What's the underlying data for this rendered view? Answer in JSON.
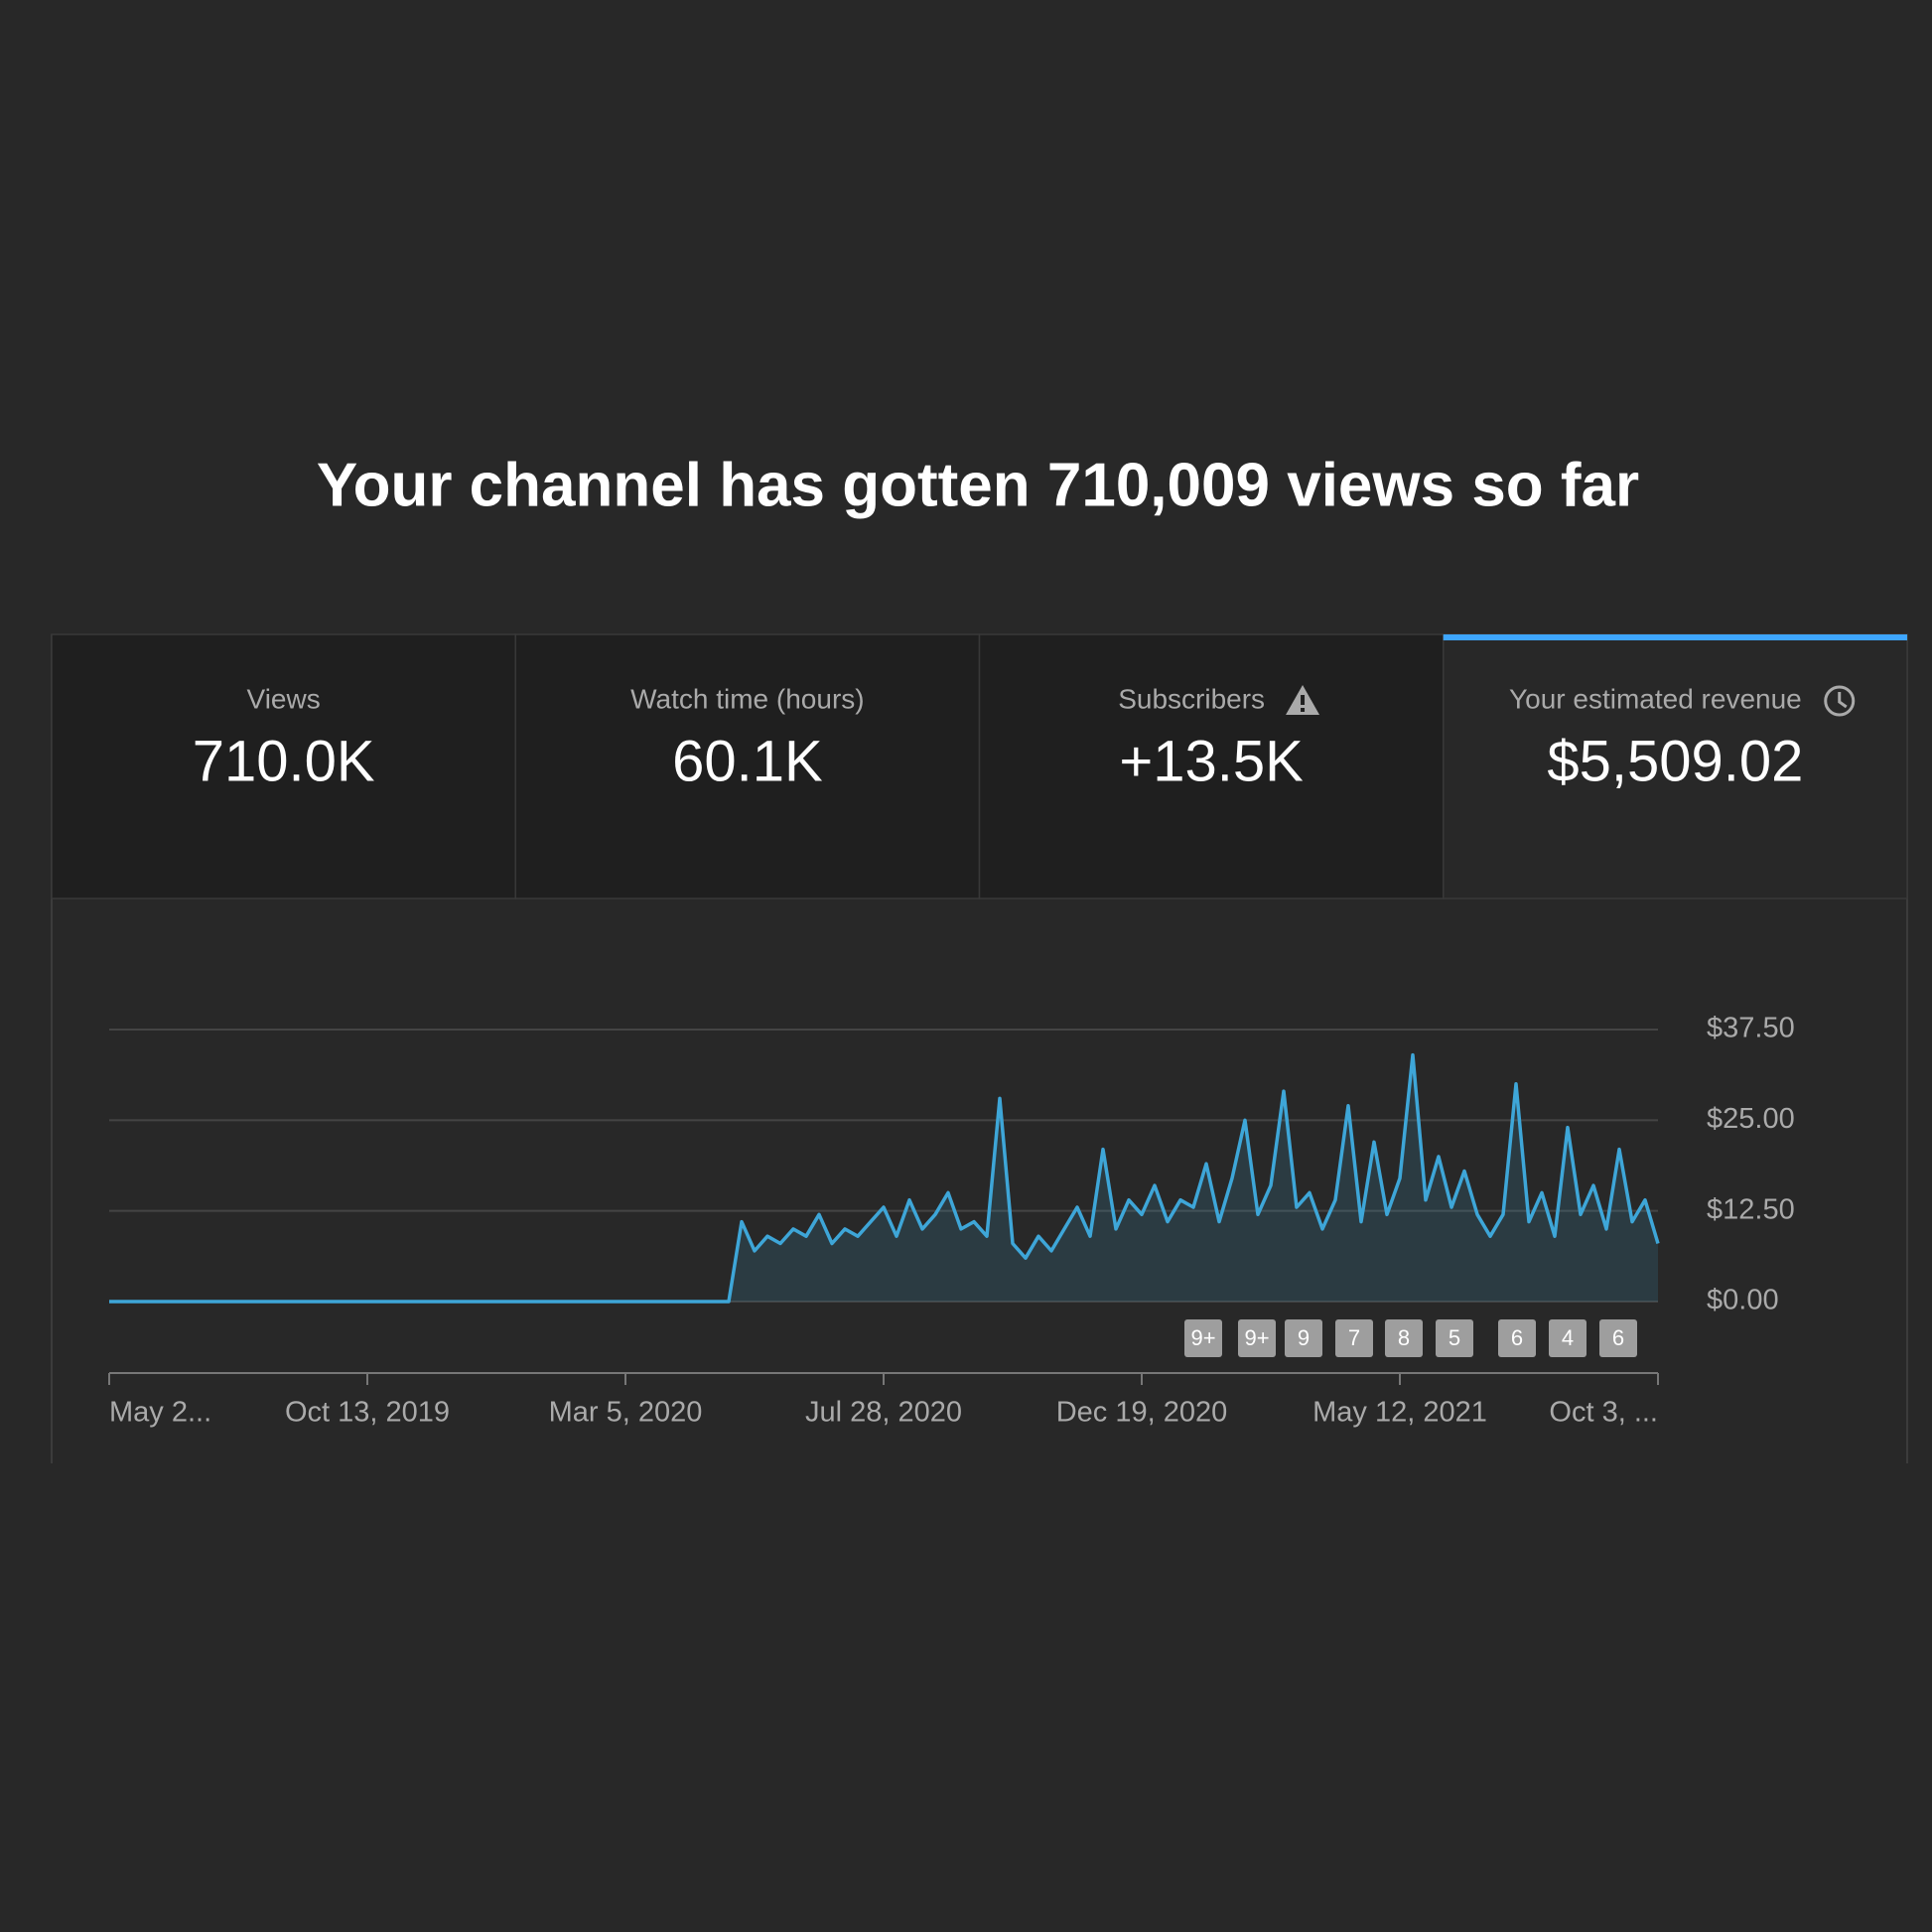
{
  "headline": "Your channel has gotten 710,009 views so far",
  "metrics": [
    {
      "label": "Views",
      "value": "710.0K"
    },
    {
      "label": "Watch time (hours)",
      "value": "60.1K"
    },
    {
      "label": "Subscribers",
      "value": "+13.5K"
    },
    {
      "label": "Your estimated revenue",
      "value": "$5,509.02"
    }
  ],
  "chart_data": {
    "type": "line",
    "color": "#3ea6d8",
    "categories": [
      "May 2...",
      null,
      null,
      null,
      null,
      null,
      null,
      null,
      null,
      null,
      null,
      null,
      null,
      null,
      null,
      null,
      null,
      null,
      null,
      null,
      "Oct 13, 2019",
      null,
      null,
      null,
      null,
      null,
      null,
      null,
      null,
      null,
      null,
      null,
      null,
      null,
      null,
      null,
      null,
      null,
      null,
      null,
      "Mar 5, 2020",
      null,
      null,
      null,
      null,
      null,
      null,
      null,
      null,
      null,
      null,
      null,
      null,
      null,
      null,
      null,
      null,
      null,
      null,
      null,
      "Jul 28, 2020",
      null,
      null,
      null,
      null,
      null,
      null,
      null,
      null,
      null,
      null,
      null,
      null,
      null,
      null,
      null,
      null,
      null,
      null,
      null,
      "Dec 19, 2020",
      null,
      null,
      null,
      null,
      null,
      null,
      null,
      null,
      null,
      null,
      null,
      null,
      null,
      null,
      null,
      null,
      null,
      null,
      null,
      "May 12, 2021",
      null,
      null,
      null,
      null,
      null,
      null,
      null,
      null,
      null,
      null,
      null,
      null,
      null,
      null,
      null,
      null,
      null,
      null,
      null,
      "Oct 3, ..."
    ],
    "values": [
      0,
      0,
      0,
      0,
      0,
      0,
      0,
      0,
      0,
      0,
      0,
      0,
      0,
      0,
      0,
      0,
      0,
      0,
      0,
      0,
      0,
      0,
      0,
      0,
      0,
      0,
      0,
      0,
      0,
      0,
      0,
      0,
      0,
      0,
      0,
      0,
      0,
      0,
      0,
      0,
      0,
      0,
      0,
      0,
      0,
      0,
      0,
      0,
      0,
      11,
      7,
      9,
      8,
      10,
      9,
      12,
      8,
      10,
      9,
      11,
      13,
      9,
      14,
      10,
      12,
      15,
      10,
      11,
      9,
      28,
      8,
      6,
      9,
      7,
      10,
      13,
      9,
      21,
      10,
      14,
      12,
      16,
      11,
      14,
      13,
      19,
      11,
      17,
      25,
      12,
      16,
      29,
      13,
      15,
      10,
      14,
      27,
      11,
      22,
      12,
      17,
      34,
      14,
      20,
      13,
      18,
      12,
      9,
      12,
      30,
      11,
      15,
      9,
      24,
      12,
      16,
      10,
      21,
      11,
      14,
      8
    ],
    "ylim": [
      0,
      37.5
    ],
    "yticks": [
      {
        "value": 0,
        "label": "$0.00"
      },
      {
        "value": 12.5,
        "label": "$12.50"
      },
      {
        "value": 25,
        "label": "$25.00"
      },
      {
        "value": 37.5,
        "label": "$37.50"
      }
    ],
    "grid": true,
    "markers": [
      "9+",
      "9+",
      "9",
      "7",
      "8",
      "5",
      "6",
      "4",
      "6"
    ]
  }
}
